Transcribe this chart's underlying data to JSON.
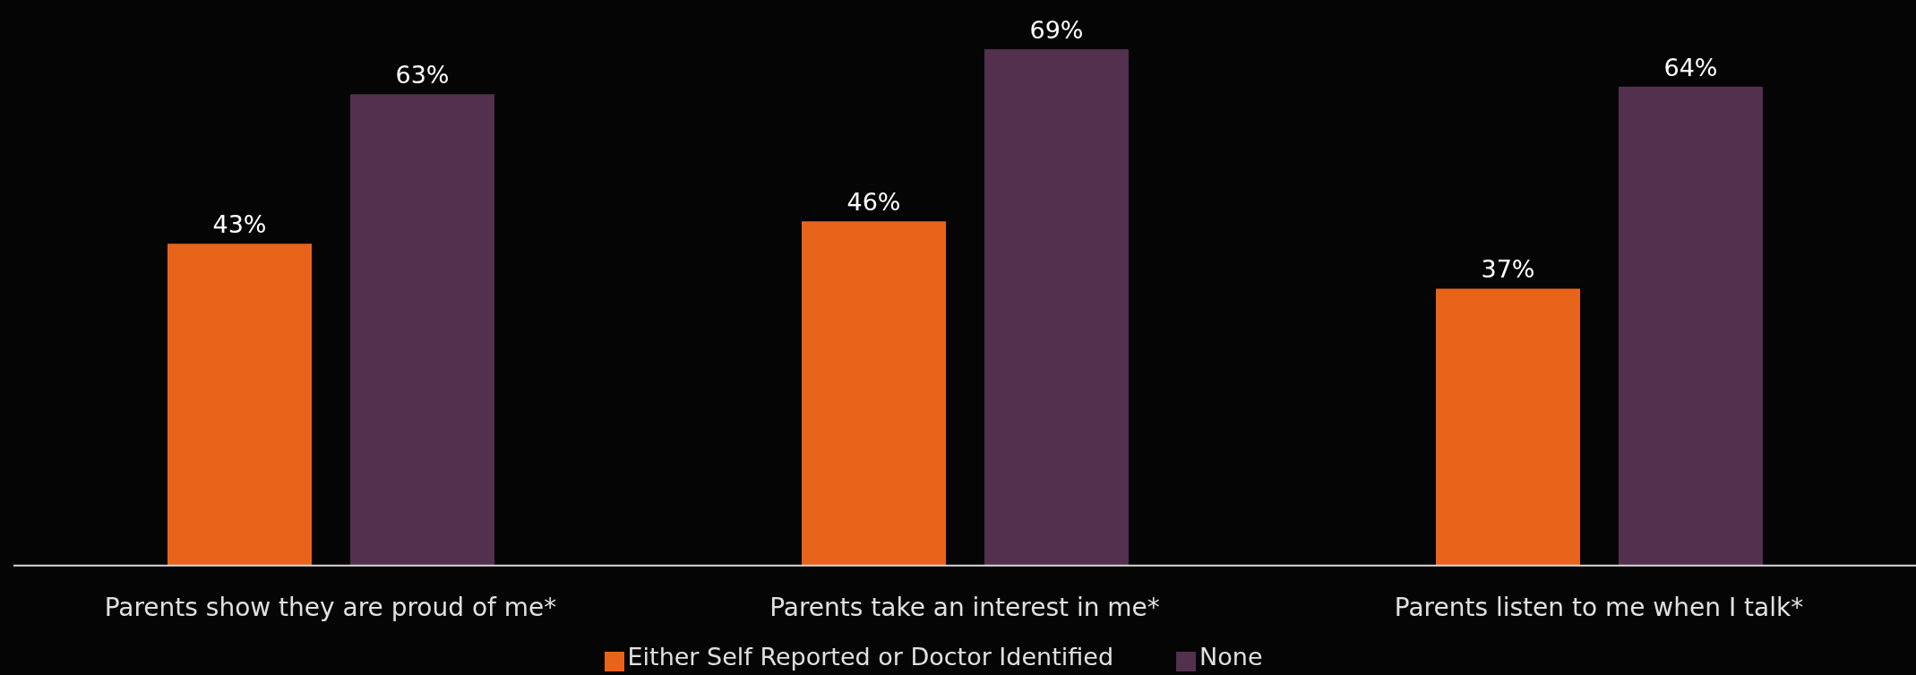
{
  "chart_data": {
    "type": "bar",
    "categories": [
      "Parents show they are proud of me*",
      "Parents take an interest in me*",
      "Parents listen to me when I talk*"
    ],
    "series": [
      {
        "name": "Either Self Reported or Doctor Identified",
        "color": "#e8641b",
        "values": [
          43,
          46,
          37
        ],
        "value_labels": [
          "43%",
          "46%",
          "37%"
        ]
      },
      {
        "name": "None",
        "color": "#52304e",
        "values": [
          63,
          69,
          64
        ],
        "value_labels": [
          "63%",
          "69%",
          "64%"
        ]
      }
    ],
    "legend": "bottom",
    "grid": false
  }
}
